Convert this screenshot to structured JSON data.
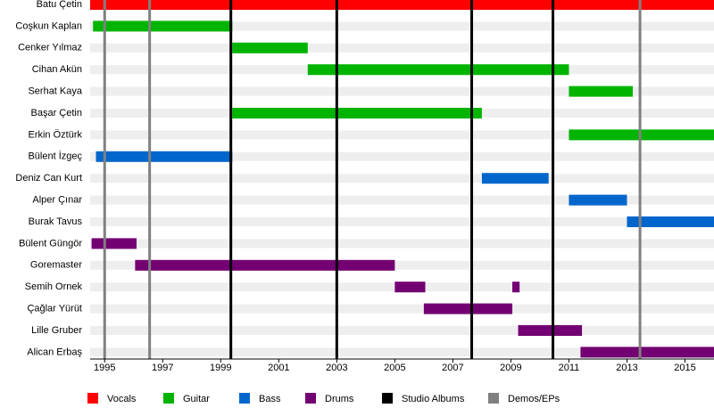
{
  "chart_data": {
    "type": "timeline",
    "categories": [
      "Batu Çetin",
      "Coşkun Kaplan",
      "Cenker Yılmaz",
      "Cihan Akün",
      "Serhat Kaya",
      "Başar Çetin",
      "Erkin Öztürk",
      "Bülent İzgeç",
      "Deniz Can Kurt",
      "Alper Çınar",
      "Burak Tavus",
      "Bülent Güngör",
      "Goremaster",
      "Semih Ornek",
      "Çağlar Yürüt",
      "Lille Gruber",
      "Alican Erbaş"
    ],
    "series": [
      {
        "name": "Vocals",
        "color": "#ff0000",
        "values": [
          [
            [
              1994.5,
              2016
            ]
          ],
          null,
          null,
          null,
          null,
          null,
          null,
          null,
          null,
          null,
          null,
          null,
          null,
          null,
          null,
          null,
          null
        ]
      },
      {
        "name": "Guitar",
        "color": "#00b400",
        "values": [
          null,
          [
            [
              1994.6,
              1999.4
            ]
          ],
          [
            [
              1999.4,
              2002.0
            ]
          ],
          [
            [
              2002.0,
              2011.0
            ]
          ],
          [
            [
              2011.0,
              2013.2
            ]
          ],
          [
            [
              1999.4,
              2008.0
            ]
          ],
          [
            [
              2011.0,
              2016
            ]
          ],
          null,
          null,
          null,
          null,
          null,
          null,
          null,
          null,
          null,
          null
        ]
      },
      {
        "name": "Bass",
        "color": "#0066cc",
        "values": [
          null,
          null,
          null,
          null,
          null,
          null,
          null,
          [
            [
              1994.7,
              1999.4
            ]
          ],
          [
            [
              2008.0,
              2010.3
            ]
          ],
          [
            [
              2011.0,
              2013.0
            ]
          ],
          [
            [
              2013.0,
              2016
            ]
          ],
          null,
          null,
          null,
          null,
          null,
          null
        ]
      },
      {
        "name": "Drums",
        "color": "#730073",
        "values": [
          null,
          null,
          null,
          null,
          null,
          null,
          null,
          null,
          null,
          null,
          null,
          [
            [
              1994.55,
              1996.1
            ]
          ],
          [
            [
              1996.05,
              2005.0
            ]
          ],
          [
            [
              2005.0,
              2006.05
            ],
            [
              2009.05,
              2009.3
            ]
          ],
          [
            [
              2006.0,
              2009.05
            ]
          ],
          [
            [
              2009.25,
              2011.45
            ]
          ],
          [
            [
              2011.4,
              2016
            ]
          ]
        ]
      }
    ],
    "events": [
      {
        "name": "Studio Albums",
        "color": "#000000",
        "values": [
          1999.35,
          2003.0,
          2007.65,
          2010.45
        ]
      },
      {
        "name": "Demos/EPs",
        "color": "#808080",
        "values": [
          1995.0,
          1996.55,
          2013.45
        ]
      }
    ],
    "xlim": [
      1994.5,
      2016
    ],
    "xticks": [
      1995,
      1997,
      1999,
      2001,
      2003,
      2005,
      2007,
      2009,
      2011,
      2013,
      2015
    ]
  }
}
